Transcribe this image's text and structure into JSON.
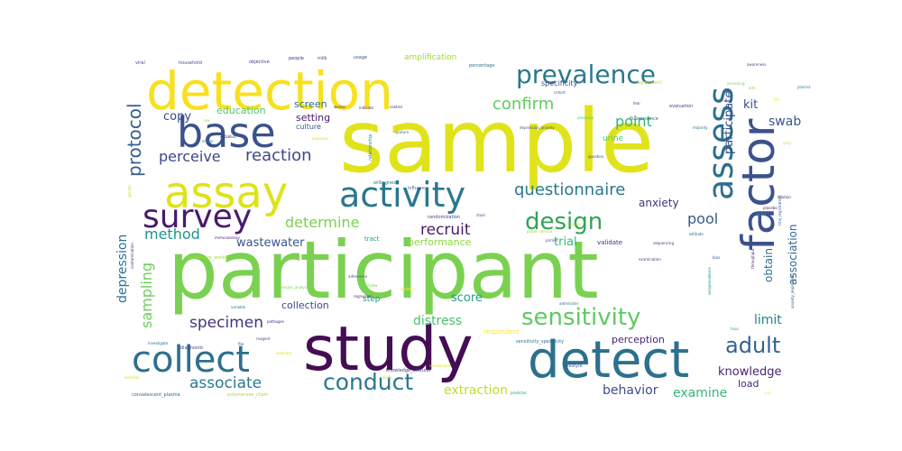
{
  "colors": {
    "background": "#ffffff",
    "palette": "viridis"
  },
  "words": [
    {
      "text": "sample",
      "color": "#e0e31a"
    },
    {
      "text": "participant",
      "color": "#7ad151"
    },
    {
      "text": "study",
      "color": "#440d54"
    },
    {
      "text": "detection",
      "color": "#f7e11f"
    },
    {
      "text": "detect",
      "color": "#2b718d"
    },
    {
      "text": "factor",
      "color": "#3b528b"
    },
    {
      "text": "assay",
      "color": "#dde318"
    },
    {
      "text": "base",
      "color": "#3b528b"
    },
    {
      "text": "assess",
      "color": "#2d708e"
    },
    {
      "text": "collect",
      "color": "#2e6f8e"
    },
    {
      "text": "activity",
      "color": "#2a788e"
    },
    {
      "text": "survey",
      "color": "#481a6c"
    },
    {
      "text": "prevalence",
      "color": "#2a788e"
    },
    {
      "text": "sensitivity",
      "color": "#5ec962"
    },
    {
      "text": "design",
      "color": "#31a354"
    },
    {
      "text": "conduct",
      "color": "#2a788e"
    },
    {
      "text": "adult",
      "color": "#33638d"
    },
    {
      "text": "questionnaire",
      "color": "#2a788e"
    },
    {
      "text": "protocol",
      "color": "#35608d"
    },
    {
      "text": "confirm",
      "color": "#63cb5f"
    },
    {
      "text": "reaction",
      "color": "#3e4a89"
    },
    {
      "text": "determine",
      "color": "#7ad151"
    },
    {
      "text": "recruit",
      "color": "#4a1c6c"
    },
    {
      "text": "specimen",
      "color": "#46327e"
    },
    {
      "text": "associate",
      "color": "#2a788e"
    },
    {
      "text": "method",
      "color": "#20938c"
    },
    {
      "text": "sampling",
      "color": "#6ccd5a"
    },
    {
      "text": "pool",
      "color": "#38598c"
    },
    {
      "text": "point",
      "color": "#35b779"
    },
    {
      "text": "perceive",
      "color": "#404688"
    },
    {
      "text": "depression",
      "color": "#2c728e"
    },
    {
      "text": "distress",
      "color": "#4ac16d"
    },
    {
      "text": "extraction",
      "color": "#bddf26"
    },
    {
      "text": "behavior",
      "color": "#3e4c8a"
    },
    {
      "text": "examine",
      "color": "#33b67a"
    },
    {
      "text": "knowledge",
      "color": "#482576"
    },
    {
      "text": "wastewater",
      "color": "#3a548c"
    },
    {
      "text": "participate",
      "color": "#3b528b"
    },
    {
      "text": "association",
      "color": "#2f6b8e"
    },
    {
      "text": "score",
      "color": "#1f9a8a"
    },
    {
      "text": "trial",
      "color": "#37b878"
    },
    {
      "text": "limit",
      "color": "#277f8e"
    },
    {
      "text": "swab",
      "color": "#38598c"
    },
    {
      "text": "kit",
      "color": "#3c4f8a"
    },
    {
      "text": "copy",
      "color": "#3f4788"
    },
    {
      "text": "education",
      "color": "#52c569"
    },
    {
      "text": "perception",
      "color": "#481f70"
    },
    {
      "text": "obtain",
      "color": "#2e6e8e"
    },
    {
      "text": "anxiety",
      "color": "#46337f"
    },
    {
      "text": "performance",
      "color": "#8fd744"
    },
    {
      "text": "collection",
      "color": "#3e4989"
    },
    {
      "text": "setting",
      "color": "#48186a"
    },
    {
      "text": "screen",
      "color": "#2f6c8e"
    },
    {
      "text": "load",
      "color": "#482878"
    },
    {
      "text": "step",
      "color": "#21918c"
    },
    {
      "text": "culture",
      "color": "#39568c"
    },
    {
      "text": "amplification",
      "color": "#a2da37"
    },
    {
      "text": "specificity",
      "color": "#3d4d8a"
    },
    {
      "text": "urine",
      "color": "#5ac864"
    },
    {
      "text": "tract",
      "color": "#1e9b8a"
    },
    {
      "text": "validate",
      "color": "#46307e"
    },
    {
      "text": "diagnostic",
      "color": "#3f4788"
    },
    {
      "text": "respondent",
      "color": "#fde725"
    },
    {
      "text": "sensitivity_specificity",
      "color": "#2c718e"
    },
    {
      "text": "knowledge_attitude",
      "color": "#453781"
    },
    {
      "text": "lifestyle",
      "color": "#39568c"
    },
    {
      "text": "polymerase_chain",
      "color": "#a8db34"
    },
    {
      "text": "convalescent_plasma",
      "color": "#33638d"
    },
    {
      "text": "healthcare_worker",
      "color": "#9fda3a"
    },
    {
      "text": "depression_anxiety",
      "color": "#3b528b"
    },
    {
      "text": "regression_analysis",
      "color": "#7fd34e"
    },
    {
      "text": "randomization",
      "color": "#3e4a89"
    },
    {
      "text": "fluorescence",
      "color": "#2d708e"
    },
    {
      "text": "evaluation",
      "color": "#404588"
    },
    {
      "text": "relationship",
      "color": "#26828e"
    },
    {
      "text": "willingness",
      "color": "#287c8e"
    },
    {
      "text": "influence",
      "color": "#375a8c"
    },
    {
      "text": "immunoassay",
      "color": "#482374"
    },
    {
      "text": "interview",
      "color": "#6ece58"
    },
    {
      "text": "regression",
      "color": "#4c2a7e"
    },
    {
      "text": "adherence",
      "color": "#38588c"
    },
    {
      "text": "recruitment",
      "color": "#d8e219"
    },
    {
      "text": "administer",
      "color": "#2a768e"
    },
    {
      "text": "sequencing",
      "color": "#443a83"
    },
    {
      "text": "agreement",
      "color": "#c2df23"
    },
    {
      "text": "majority",
      "color": "#2b748e"
    },
    {
      "text": "awareness",
      "color": "#3f4889"
    },
    {
      "text": "household",
      "color": "#39558c"
    },
    {
      "text": "objective",
      "color": "#404688"
    },
    {
      "text": "people",
      "color": "#453581"
    },
    {
      "text": "milk",
      "color": "#3f4889"
    },
    {
      "text": "usage",
      "color": "#38588c"
    },
    {
      "text": "percentage",
      "color": "#2b748e"
    },
    {
      "text": "variable",
      "color": "#2a788e"
    },
    {
      "text": "cohort",
      "color": "#33638d"
    },
    {
      "text": "question",
      "color": "#404688"
    },
    {
      "text": "presence",
      "color": "#4ec36b"
    },
    {
      "text": "indicate",
      "color": "#472d7b"
    },
    {
      "text": "control",
      "color": "#482071"
    },
    {
      "text": "reagent",
      "color": "#3d4e8a"
    },
    {
      "text": "viral",
      "color": "#3b518b"
    },
    {
      "text": "plasma",
      "color": "#25848e"
    },
    {
      "text": "scale",
      "color": "#a0da39"
    },
    {
      "text": "file",
      "color": "#3e4a89"
    },
    {
      "text": "placebo",
      "color": "#481467"
    },
    {
      "text": "gender",
      "color": "#b5de2b"
    },
    {
      "text": "panel",
      "color": "#8bd646"
    },
    {
      "text": "saliva",
      "color": "#b8de29"
    },
    {
      "text": "stool",
      "color": "#3a538b"
    },
    {
      "text": "probe",
      "color": "#1f9f88"
    },
    {
      "text": "bias",
      "color": "#3b528b"
    },
    {
      "text": "fear",
      "color": "#433e85"
    },
    {
      "text": "pair",
      "color": "#fde725"
    },
    {
      "text": "sputum",
      "color": "#2c728e"
    },
    {
      "text": "exposure",
      "color": "#d2e21b"
    },
    {
      "text": "isolation",
      "color": "#f8e621"
    },
    {
      "text": "establish",
      "color": "#472f7d"
    },
    {
      "text": "investigate",
      "color": "#2d708e"
    },
    {
      "text": "evaluate",
      "color": "#e5e419"
    },
    {
      "text": "throughput",
      "color": "#482475"
    },
    {
      "text": "attitude",
      "color": "#31688e"
    },
    {
      "text": "predictor",
      "color": "#1fa088"
    },
    {
      "text": "life",
      "color": "#f1e51d"
    },
    {
      "text": "vary",
      "color": "#b5de2b"
    },
    {
      "text": "aim",
      "color": "#86d549"
    },
    {
      "text": "service",
      "color": "#a0da39"
    },
    {
      "text": "primer",
      "color": "#3b528b"
    },
    {
      "text": "pathogen",
      "color": "#472c7a"
    },
    {
      "text": "hour",
      "color": "#22a884"
    },
    {
      "text": "sex",
      "color": "#8fd744"
    },
    {
      "text": "smear",
      "color": "#2b758e"
    },
    {
      "text": "trial_registration",
      "color": "#33638d"
    },
    {
      "text": "anxiety_depression",
      "color": "#3b528b"
    },
    {
      "text": "seroprevalence",
      "color": "#228d8d"
    },
    {
      "text": "dilution",
      "color": "#48186a"
    },
    {
      "text": "contamination",
      "color": "#45337d"
    },
    {
      "text": "examination",
      "color": "#3f4889"
    },
    {
      "text": "screening",
      "color": "#7ad151"
    },
    {
      "text": "worker",
      "color": "#48186a"
    },
    {
      "text": "exercise",
      "color": "#d0e11c"
    }
  ]
}
